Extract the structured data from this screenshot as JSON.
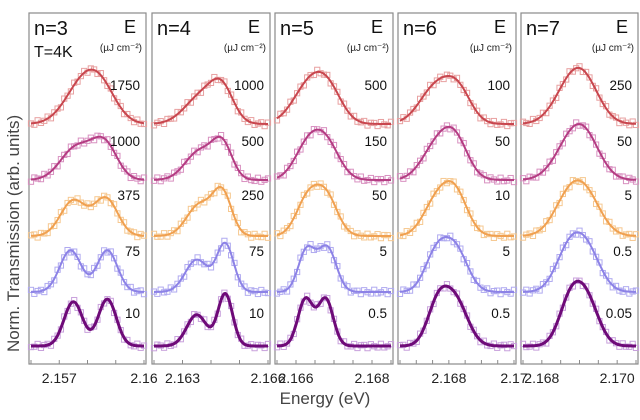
{
  "chart_data": {
    "type": "line",
    "title": "",
    "ylabel": "Norm. Transmission  (arb. units)",
    "xlabel": "Energy (eV)",
    "legend_header": "E",
    "legend_unit": "(µJ cm⁻²)",
    "annotation": "T=4K",
    "marker": "open-square",
    "series_colors": [
      "#c8464e",
      "#b43c82",
      "#f0a050",
      "#8c82e6",
      "#6e0a78"
    ],
    "marker_colors": [
      "#e8a0a0",
      "#d890c0",
      "#f6c890",
      "#b0aaf0",
      "#c8a0dc"
    ],
    "panels": [
      {
        "title": "n=3",
        "xlim": [
          2.156,
          2.16
        ],
        "xticks": [
          2.157,
          2.16
        ],
        "xtick_labels": [
          "2.157",
          "2.16"
        ],
        "minor_ticks": [
          2.156,
          2.157,
          2.158,
          2.159,
          2.16
        ],
        "traces": [
          {
            "fluence": "1750",
            "peaks": [
              [
                2.1578,
                0.7,
                0.00062
              ],
              [
                2.1585,
                0.55,
                0.00055
              ]
            ]
          },
          {
            "fluence": "1000",
            "peaks": [
              [
                2.1576,
                0.62,
                0.00055
              ],
              [
                2.1586,
                0.68,
                0.00045
              ]
            ]
          },
          {
            "fluence": "375",
            "peaks": [
              [
                2.1575,
                0.68,
                0.00045
              ],
              [
                2.15865,
                0.72,
                0.00042
              ]
            ]
          },
          {
            "fluence": "75",
            "peaks": [
              [
                2.1574,
                0.8,
                0.00038
              ],
              [
                2.1587,
                0.8,
                0.00036
              ]
            ]
          },
          {
            "fluence": "10",
            "peaks": [
              [
                2.1575,
                0.85,
                0.00033
              ],
              [
                2.1587,
                0.9,
                0.00032
              ]
            ]
          }
        ]
      },
      {
        "title": "n=4",
        "xlim": [
          2.162,
          2.166
        ],
        "xticks": [
          2.163,
          2.166
        ],
        "xtick_labels": [
          "2.163",
          "2.166"
        ],
        "minor_ticks": [
          2.162,
          2.163,
          2.164,
          2.165,
          2.166
        ],
        "traces": [
          {
            "fluence": "1000",
            "peaks": [
              [
                2.1637,
                0.55,
                0.0006
              ],
              [
                2.1644,
                0.55,
                0.0004
              ]
            ]
          },
          {
            "fluence": "500",
            "peaks": [
              [
                2.1636,
                0.55,
                0.0005
              ],
              [
                2.1644,
                0.65,
                0.00035
              ]
            ]
          },
          {
            "fluence": "250",
            "peaks": [
              [
                2.1636,
                0.6,
                0.00045
              ],
              [
                2.1644,
                0.8,
                0.00033
              ]
            ]
          },
          {
            "fluence": "75",
            "peaks": [
              [
                2.1635,
                0.62,
                0.0004
              ],
              [
                2.1645,
                0.92,
                0.0003
              ]
            ]
          },
          {
            "fluence": "10",
            "peaks": [
              [
                2.1635,
                0.6,
                0.00035
              ],
              [
                2.1645,
                1.0,
                0.00026
              ]
            ]
          }
        ]
      },
      {
        "title": "n=5",
        "xlim": [
          2.1655,
          2.1685
        ],
        "xticks": [
          2.166,
          2.168
        ],
        "xtick_labels": [
          "2.166",
          "2.168"
        ],
        "minor_ticks": [
          2.1655,
          2.166,
          2.1665,
          2.167,
          2.1675,
          2.168,
          2.1685
        ],
        "traces": [
          {
            "fluence": "500",
            "peaks": [
              [
                2.1664,
                0.8,
                0.00045
              ],
              [
                2.1669,
                0.4,
                0.00035
              ]
            ]
          },
          {
            "fluence": "150",
            "peaks": [
              [
                2.1663,
                0.6,
                0.00035
              ],
              [
                2.1668,
                0.65,
                0.00035
              ]
            ]
          },
          {
            "fluence": "50",
            "peaks": [
              [
                2.1663,
                0.68,
                0.0003
              ],
              [
                2.1668,
                0.72,
                0.0003
              ]
            ]
          },
          {
            "fluence": "5",
            "peaks": [
              [
                2.16628,
                0.8,
                0.00022
              ],
              [
                2.16682,
                0.85,
                0.00024
              ]
            ]
          },
          {
            "fluence": "0.5",
            "peaks": [
              [
                2.16625,
                0.9,
                0.0002
              ],
              [
                2.16678,
                0.9,
                0.0002
              ]
            ]
          }
        ]
      },
      {
        "title": "n=6",
        "xlim": [
          2.1665,
          2.17
        ],
        "xticks": [
          2.168,
          2.17
        ],
        "xtick_labels": [
          "2.168",
          "2.17"
        ],
        "minor_ticks": [
          2.1665,
          2.167,
          2.1675,
          2.168,
          2.1685,
          2.169,
          2.1695,
          2.17
        ],
        "traces": [
          {
            "fluence": "100",
            "peaks": [
              [
                2.1676,
                0.7,
                0.0005
              ],
              [
                2.1683,
                0.55,
                0.0004
              ]
            ]
          },
          {
            "fluence": "50",
            "peaks": [
              [
                2.1676,
                0.6,
                0.00045
              ],
              [
                2.1682,
                0.7,
                0.0004
              ]
            ]
          },
          {
            "fluence": "10",
            "peaks": [
              [
                2.1676,
                0.62,
                0.0004
              ],
              [
                2.1682,
                0.78,
                0.00038
              ]
            ]
          },
          {
            "fluence": "5",
            "peaks": [
              [
                2.1676,
                0.68,
                0.00035
              ],
              [
                2.1682,
                0.8,
                0.00038
              ]
            ]
          },
          {
            "fluence": "0.5",
            "peaks": [
              [
                2.16765,
                0.72,
                0.00032
              ],
              [
                2.1682,
                0.85,
                0.00038
              ]
            ]
          }
        ]
      },
      {
        "title": "n=7",
        "xlim": [
          2.1675,
          2.1705
        ],
        "xticks": [
          2.168,
          2.17
        ],
        "xtick_labels": [
          "2.168",
          "2.170"
        ],
        "minor_ticks": [
          2.1675,
          2.168,
          2.1685,
          2.169,
          2.1695,
          2.17,
          2.1705
        ],
        "traces": [
          {
            "fluence": "250",
            "peaks": [
              [
                2.1688,
                0.75,
                0.00045
              ],
              [
                2.1692,
                0.45,
                0.0004
              ]
            ]
          },
          {
            "fluence": "50",
            "peaks": [
              [
                2.1688,
                0.7,
                0.00045
              ],
              [
                2.1692,
                0.5,
                0.0004
              ]
            ]
          },
          {
            "fluence": "5",
            "peaks": [
              [
                2.1687,
                0.65,
                0.0004
              ],
              [
                2.1692,
                0.65,
                0.0004
              ]
            ]
          },
          {
            "fluence": "0.5",
            "peaks": [
              [
                2.1687,
                0.72,
                0.00035
              ],
              [
                2.1692,
                0.75,
                0.00036
              ]
            ]
          },
          {
            "fluence": "0.05",
            "peaks": [
              [
                2.16875,
                0.8,
                0.0003
              ],
              [
                2.1692,
                0.82,
                0.00032
              ]
            ]
          }
        ]
      }
    ]
  }
}
